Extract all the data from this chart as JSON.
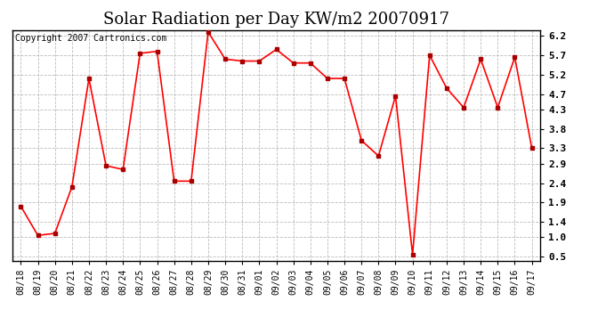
{
  "title": "Solar Radiation per Day KW/m2 20070917",
  "copyright": "Copyright 2007 Cartronics.com",
  "labels": [
    "08/18",
    "08/19",
    "08/20",
    "08/21",
    "08/22",
    "08/23",
    "08/24",
    "08/25",
    "08/26",
    "08/27",
    "08/28",
    "08/29",
    "08/30",
    "08/31",
    "09/01",
    "09/02",
    "09/03",
    "09/04",
    "09/05",
    "09/06",
    "09/07",
    "09/08",
    "09/09",
    "09/10",
    "09/11",
    "09/12",
    "09/13",
    "09/14",
    "09/15",
    "09/16",
    "09/17"
  ],
  "values": [
    1.8,
    1.05,
    1.1,
    2.3,
    5.1,
    2.85,
    2.75,
    5.75,
    5.8,
    2.45,
    2.45,
    6.3,
    5.6,
    5.55,
    5.55,
    5.85,
    5.5,
    5.5,
    5.1,
    5.1,
    3.5,
    3.1,
    4.65,
    0.55,
    5.7,
    4.85,
    4.35,
    5.6,
    4.35,
    5.65,
    3.3
  ],
  "yticks": [
    0.5,
    1.0,
    1.4,
    1.9,
    2.4,
    2.9,
    3.3,
    3.8,
    4.3,
    4.7,
    5.2,
    5.7,
    6.2
  ],
  "line_color": "#ff0000",
  "marker": "s",
  "marker_color": "#aa0000",
  "marker_size": 3,
  "bg_color": "white",
  "grid_color": "#bbbbbb",
  "title_fontsize": 13,
  "copyright_fontsize": 7,
  "tick_fontsize": 7,
  "ytick_fontsize": 8
}
